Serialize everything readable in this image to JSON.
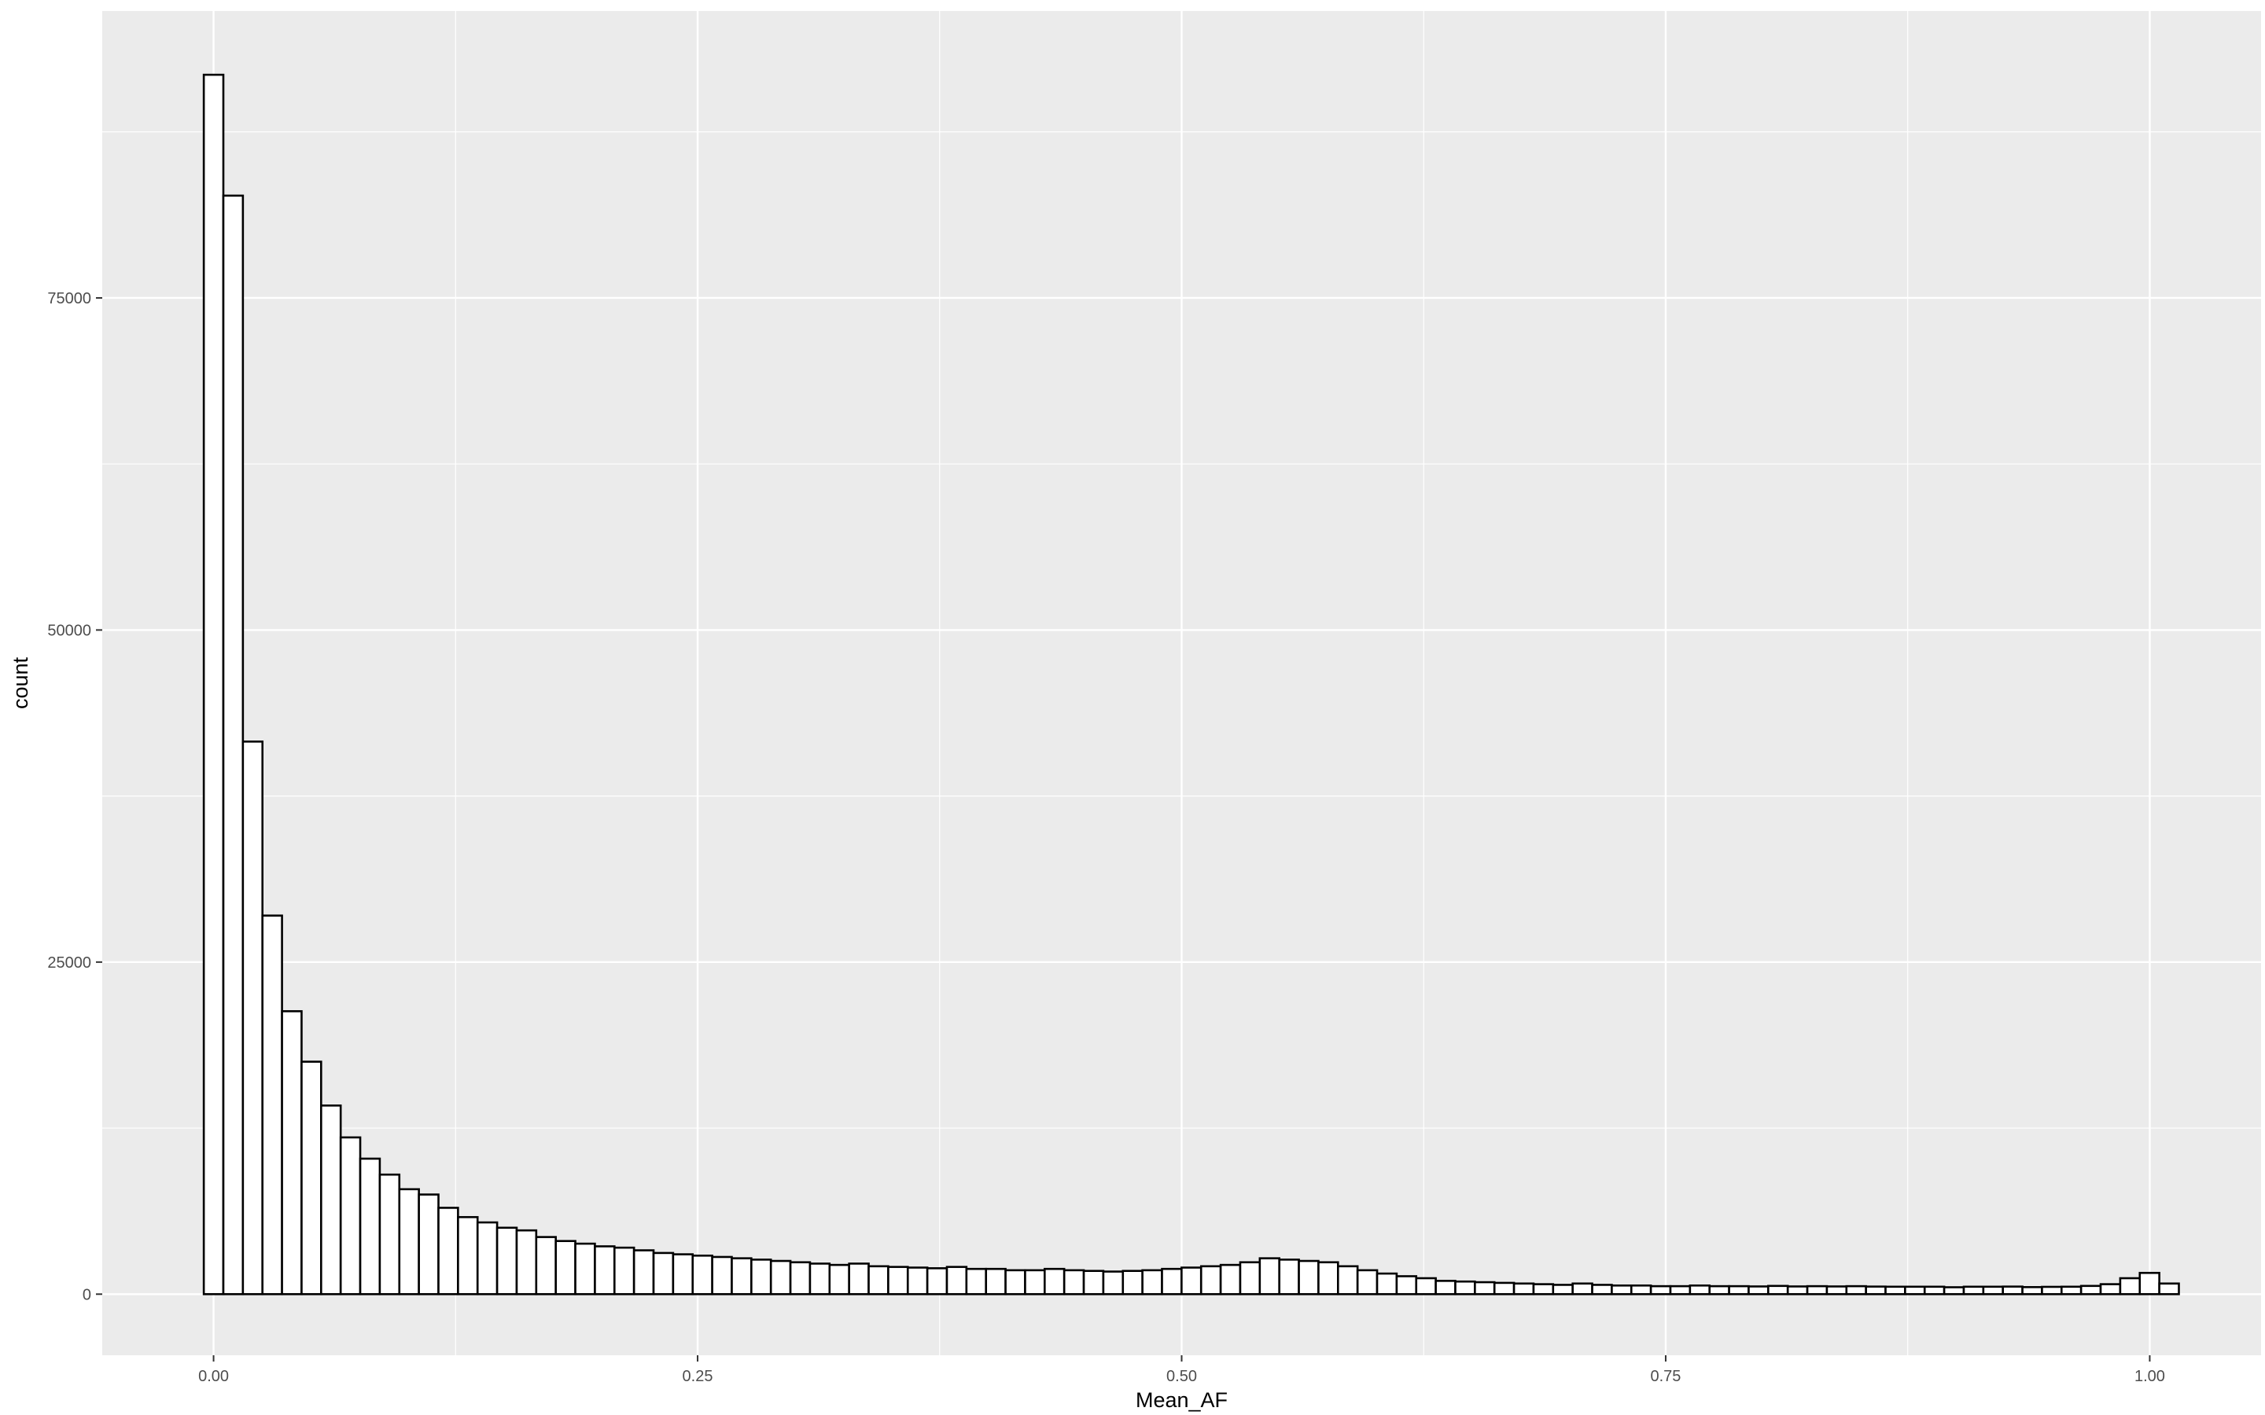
{
  "chart_data": {
    "type": "bar",
    "title": "",
    "xlabel": "Mean_AF",
    "ylabel": "count",
    "xlim": [
      -0.0575,
      1.0575
    ],
    "ylim": [
      -4600,
      96600
    ],
    "x_ticks": [
      0.0,
      0.25,
      0.5,
      0.75,
      1.0
    ],
    "x_tick_labels": [
      "0.00",
      "0.25",
      "0.50",
      "0.75",
      "1.00"
    ],
    "y_ticks": [
      0,
      25000,
      50000,
      75000
    ],
    "y_tick_labels": [
      "0",
      "25000",
      "50000",
      "75000"
    ],
    "grid": true,
    "panel_background": "#ebebeb",
    "grid_color": "#ffffff",
    "bar_fill": "#ffffff",
    "bar_stroke": "#000000",
    "bin_width": 0.0101,
    "bin_start": -0.00505,
    "values": [
      91800,
      82700,
      41600,
      28500,
      21300,
      17500,
      14200,
      11800,
      10200,
      9000,
      7900,
      7500,
      6500,
      5800,
      5400,
      5000,
      4800,
      4300,
      4000,
      3800,
      3600,
      3500,
      3300,
      3100,
      3000,
      2900,
      2800,
      2700,
      2600,
      2500,
      2400,
      2300,
      2200,
      2300,
      2100,
      2050,
      2000,
      1950,
      2050,
      1900,
      1900,
      1800,
      1800,
      1900,
      1800,
      1750,
      1700,
      1750,
      1800,
      1900,
      2000,
      2100,
      2200,
      2400,
      2700,
      2600,
      2500,
      2400,
      2100,
      1800,
      1550,
      1350,
      1200,
      1000,
      950,
      900,
      850,
      800,
      750,
      700,
      800,
      700,
      650,
      650,
      600,
      600,
      650,
      600,
      600,
      580,
      620,
      580,
      600,
      580,
      600,
      570,
      560,
      560,
      560,
      520,
      560,
      560,
      570,
      530,
      550,
      560,
      620,
      750,
      1200,
      1600,
      800
    ]
  }
}
